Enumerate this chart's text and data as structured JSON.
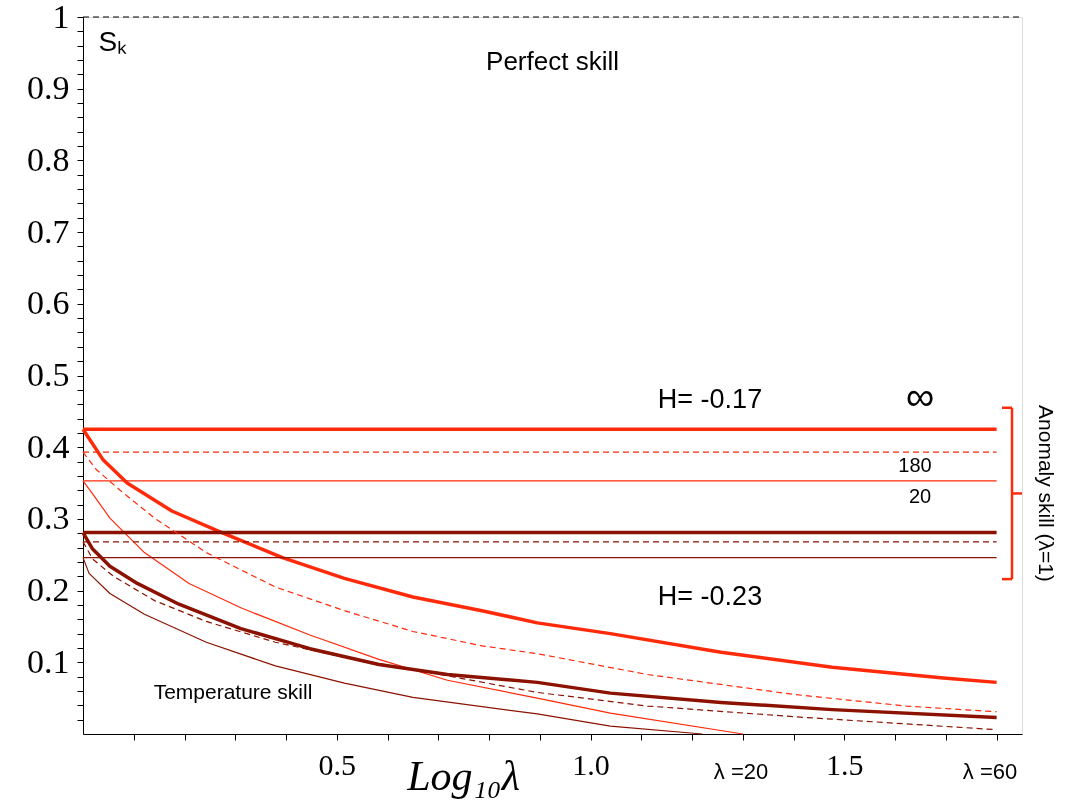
{
  "chart_data": {
    "type": "line",
    "xlabel": "Log₁₀λ",
    "ylabel": "Sₖ",
    "xlim": [
      0,
      1.85
    ],
    "ylim": [
      0,
      1
    ],
    "xticks": [
      {
        "value": 0.1,
        "label": null
      },
      {
        "value": 0.2,
        "label": null
      },
      {
        "value": 0.3,
        "label": null
      },
      {
        "value": 0.4,
        "label": null
      },
      0.5,
      {
        "value": 0.6,
        "label": null
      },
      {
        "value": 0.7,
        "label": null
      },
      {
        "value": 0.8,
        "label": null
      },
      {
        "value": 0.9,
        "label": null
      },
      {
        "value": 1,
        "label": "1.0"
      },
      {
        "value": 1.1,
        "label": null
      },
      {
        "value": 1.2,
        "label": null
      },
      {
        "value": 1.3,
        "label": null
      },
      {
        "value": 1.4,
        "label": null
      },
      1.5,
      {
        "value": 1.6,
        "label": null
      },
      {
        "value": 1.7,
        "label": null
      },
      {
        "value": 1.8,
        "label": null
      }
    ],
    "yticks": [
      {
        "value": 0.02,
        "label": null
      },
      {
        "value": 0.04,
        "label": null
      },
      {
        "value": 0.06,
        "label": null
      },
      {
        "value": 0.08,
        "label": null
      },
      0.1,
      {
        "value": 0.12,
        "label": null
      },
      {
        "value": 0.14,
        "label": null
      },
      {
        "value": 0.16,
        "label": null
      },
      {
        "value": 0.18,
        "label": null
      },
      0.2,
      {
        "value": 0.22,
        "label": null
      },
      {
        "value": 0.24,
        "label": null
      },
      {
        "value": 0.26,
        "label": null
      },
      {
        "value": 0.28,
        "label": null
      },
      0.3,
      {
        "value": 0.32,
        "label": null
      },
      {
        "value": 0.34,
        "label": null
      },
      {
        "value": 0.36,
        "label": null
      },
      {
        "value": 0.38,
        "label": null
      },
      0.4,
      {
        "value": 0.42,
        "label": null
      },
      {
        "value": 0.44,
        "label": null
      },
      {
        "value": 0.46,
        "label": null
      },
      {
        "value": 0.48,
        "label": null
      },
      0.5,
      {
        "value": 0.52,
        "label": null
      },
      {
        "value": 0.54,
        "label": null
      },
      {
        "value": 0.56,
        "label": null
      },
      {
        "value": 0.58,
        "label": null
      },
      0.6,
      {
        "value": 0.62,
        "label": null
      },
      {
        "value": 0.64,
        "label": null
      },
      {
        "value": 0.66,
        "label": null
      },
      {
        "value": 0.68,
        "label": null
      },
      0.7,
      {
        "value": 0.72,
        "label": null
      },
      {
        "value": 0.74,
        "label": null
      },
      {
        "value": 0.76,
        "label": null
      },
      {
        "value": 0.78,
        "label": null
      },
      0.8,
      {
        "value": 0.82,
        "label": null
      },
      {
        "value": 0.84,
        "label": null
      },
      {
        "value": 0.86,
        "label": null
      },
      {
        "value": 0.88,
        "label": null
      },
      0.9,
      {
        "value": 0.92,
        "label": null
      },
      {
        "value": 0.94,
        "label": null
      },
      {
        "value": 0.96,
        "label": null
      },
      {
        "value": 0.98,
        "label": null
      },
      1
    ],
    "grid": false,
    "legend": false,
    "marker": "none",
    "series": [
      {
        "color": "#ff2a0a",
        "line_style": "solid",
        "x": [
          0,
          1.8
        ],
        "values": [
          0.425,
          0.425
        ]
      },
      {
        "color": "#ff2a0a",
        "line_style": "dashed",
        "x": [
          0,
          1.8
        ],
        "values": [
          0.393,
          0.393
        ]
      },
      {
        "color": "#ff2a0a",
        "line_style": "solid",
        "x": [
          0,
          1.8
        ],
        "values": [
          0.353,
          0.353
        ]
      },
      {
        "color": "#ff2a0a",
        "line_style": "solid",
        "x": [
          0,
          0.039,
          0.087,
          0.175,
          0.27,
          0.393,
          0.515,
          0.65,
          0.786,
          0.895,
          1.039,
          1.257,
          1.476,
          1.695,
          1.8
        ],
        "values": [
          0.425,
          0.383,
          0.35,
          0.311,
          0.282,
          0.246,
          0.217,
          0.191,
          0.172,
          0.155,
          0.14,
          0.114,
          0.093,
          0.078,
          0.072
        ]
      },
      {
        "color": "#ff2a0a",
        "line_style": "dashed",
        "x": [
          0,
          0.026,
          0.073,
          0.141,
          0.243,
          0.379,
          0.515,
          0.65,
          0.786,
          0.895,
          1.112,
          1.403,
          1.622,
          1.8
        ],
        "values": [
          0.393,
          0.369,
          0.34,
          0.301,
          0.253,
          0.205,
          0.172,
          0.143,
          0.123,
          0.112,
          0.083,
          0.055,
          0.039,
          0.031
        ]
      },
      {
        "color": "#ff2a0a",
        "line_style": "solid",
        "x": [
          0,
          0.019,
          0.053,
          0.121,
          0.209,
          0.311,
          0.447,
          0.583,
          0.718,
          0.895,
          1.039,
          1.3
        ],
        "values": [
          0.353,
          0.335,
          0.301,
          0.253,
          0.21,
          0.176,
          0.138,
          0.104,
          0.075,
          0.05,
          0.029,
          0
        ]
      },
      {
        "color": "#8b1200",
        "line_style": "solid",
        "x": [
          0,
          1.8
        ],
        "values": [
          0.281,
          0.281
        ]
      },
      {
        "color": "#8b1200",
        "line_style": "dashed",
        "x": [
          0,
          1.8
        ],
        "values": [
          0.268,
          0.268
        ]
      },
      {
        "color": "#8b1200",
        "line_style": "solid",
        "x": [
          0,
          1.8
        ],
        "values": [
          0.246,
          0.246
        ]
      },
      {
        "color": "#8b1200",
        "line_style": "solid",
        "x": [
          0,
          0.019,
          0.053,
          0.107,
          0.189,
          0.311,
          0.447,
          0.583,
          0.718,
          0.895,
          1.039,
          1.257,
          1.476,
          1.8
        ],
        "values": [
          0.281,
          0.258,
          0.234,
          0.21,
          0.181,
          0.147,
          0.119,
          0.097,
          0.083,
          0.072,
          0.057,
          0.044,
          0.034,
          0.023
        ]
      },
      {
        "color": "#8b1200",
        "line_style": "dashed",
        "x": [
          0,
          0.019,
          0.06,
          0.141,
          0.243,
          0.379,
          0.515,
          0.65,
          0.895,
          1.112,
          1.403,
          1.8
        ],
        "values": [
          0.268,
          0.244,
          0.22,
          0.186,
          0.157,
          0.128,
          0.107,
          0.09,
          0.058,
          0.039,
          0.024,
          0.006
        ]
      },
      {
        "color": "#8b1200",
        "line_style": "solid",
        "x": [
          0,
          0.012,
          0.053,
          0.121,
          0.243,
          0.379,
          0.515,
          0.65,
          0.895,
          1.039,
          1.22
        ],
        "values": [
          0.246,
          0.224,
          0.196,
          0.167,
          0.128,
          0.095,
          0.071,
          0.051,
          0.028,
          0.011,
          0
        ]
      }
    ],
    "ref_lines": [
      {
        "axis": "y",
        "value": 1,
        "label": "Perfect skill",
        "line_style": "dashed",
        "color": "#000000"
      }
    ],
    "annotations": [
      "H= -0.17",
      "∞",
      "180",
      "20",
      "H= -0.23",
      "Temperature skill",
      "λ =20",
      "λ =60",
      "Anomaly skill (λ=1)"
    ]
  }
}
